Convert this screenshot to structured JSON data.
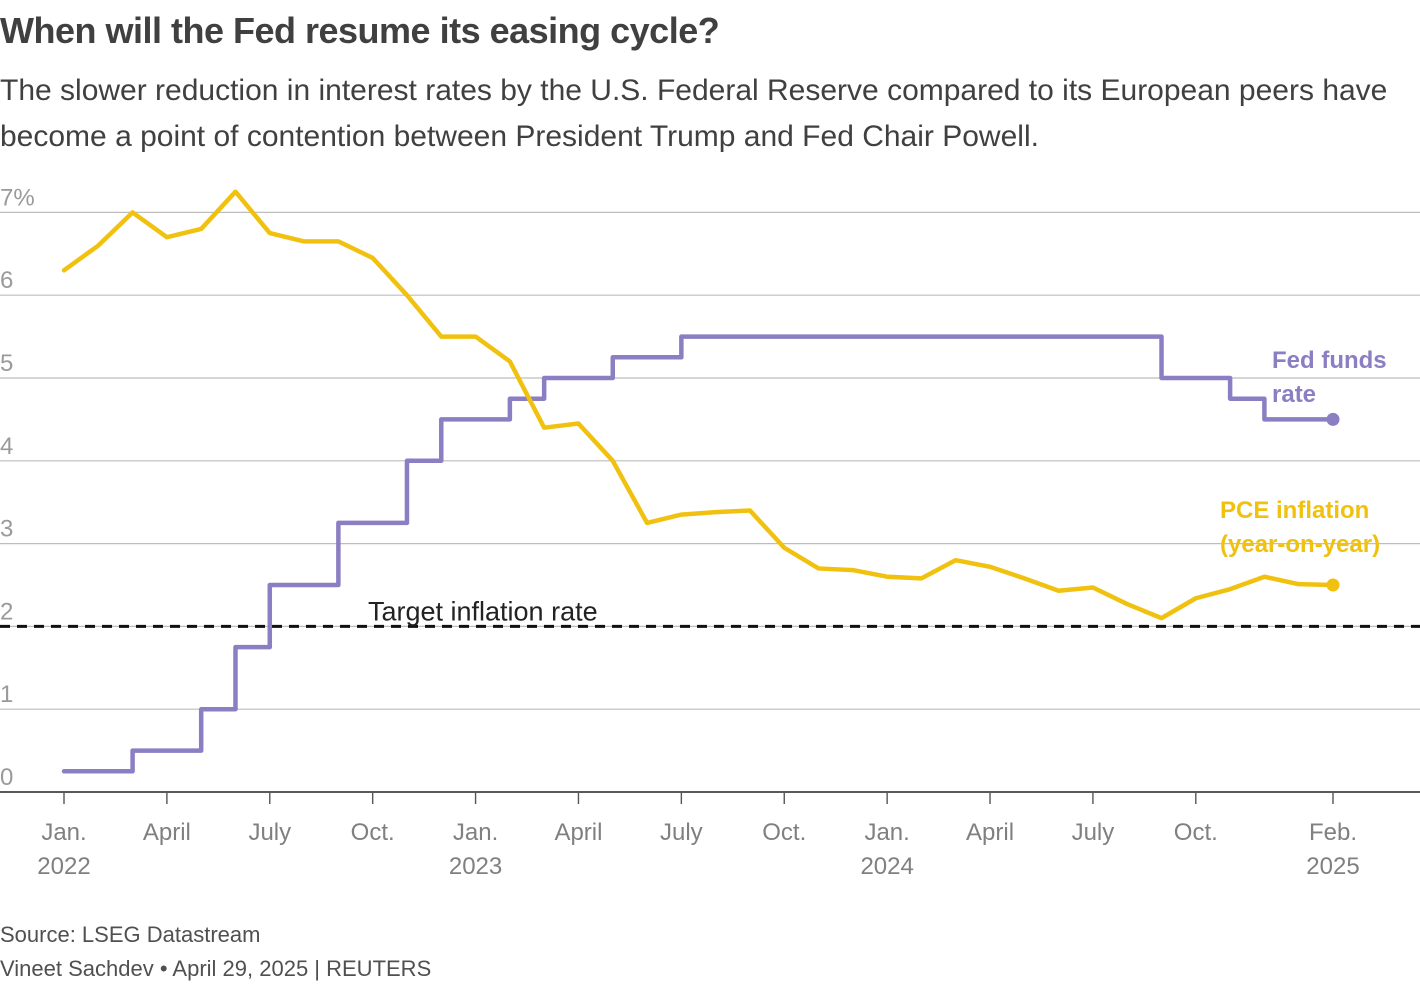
{
  "header": {
    "title": "When will the Fed resume its easing cycle?",
    "subtitle": "The slower reduction in interest rates by the U.S. Federal Reserve compared to its European peers have become a point of contention between President Trump and Fed Chair Powell."
  },
  "footer": {
    "source": "Source: LSEG Datastream",
    "byline": "Vineet Sachdev • April 29, 2025 | REUTERS"
  },
  "chart_data": {
    "type": "line",
    "title": "When will the Fed resume its easing cycle?",
    "ylim": [
      0,
      7
    ],
    "y_ticks": [
      {
        "value": 0,
        "label": "0"
      },
      {
        "value": 1,
        "label": "1"
      },
      {
        "value": 2,
        "label": "2"
      },
      {
        "value": 3,
        "label": "3"
      },
      {
        "value": 4,
        "label": "4"
      },
      {
        "value": 5,
        "label": "5"
      },
      {
        "value": 6,
        "label": "6"
      },
      {
        "value": 7,
        "label": "7%"
      }
    ],
    "x_range": [
      "2022-01",
      "2025-02"
    ],
    "x_ticks": [
      {
        "date": "2022-01",
        "label": "Jan.",
        "year": "2022"
      },
      {
        "date": "2022-04",
        "label": "April",
        "year": ""
      },
      {
        "date": "2022-07",
        "label": "July",
        "year": ""
      },
      {
        "date": "2022-10",
        "label": "Oct.",
        "year": ""
      },
      {
        "date": "2023-01",
        "label": "Jan.",
        "year": "2023"
      },
      {
        "date": "2023-04",
        "label": "April",
        "year": ""
      },
      {
        "date": "2023-07",
        "label": "July",
        "year": ""
      },
      {
        "date": "2023-10",
        "label": "Oct.",
        "year": ""
      },
      {
        "date": "2024-01",
        "label": "Jan.",
        "year": "2024"
      },
      {
        "date": "2024-04",
        "label": "April",
        "year": ""
      },
      {
        "date": "2024-07",
        "label": "July",
        "year": ""
      },
      {
        "date": "2024-10",
        "label": "Oct.",
        "year": ""
      },
      {
        "date": "2025-02",
        "label": "Feb.",
        "year": "2025"
      }
    ],
    "grid": true,
    "reference_line": {
      "value": 2,
      "label": "Target inflation rate",
      "style": "dashed"
    },
    "series": [
      {
        "name": "Fed funds rate",
        "label_lines": [
          "Fed funds",
          "rate"
        ],
        "color": "#8c7ec3",
        "step": true,
        "points": [
          [
            "2022-01",
            0.25
          ],
          [
            "2022-03",
            0.5
          ],
          [
            "2022-05",
            1.0
          ],
          [
            "2022-06",
            1.75
          ],
          [
            "2022-07",
            2.5
          ],
          [
            "2022-09",
            3.25
          ],
          [
            "2022-11",
            4.0
          ],
          [
            "2022-12",
            4.5
          ],
          [
            "2023-02",
            4.75
          ],
          [
            "2023-03",
            5.0
          ],
          [
            "2023-05",
            5.25
          ],
          [
            "2023-07",
            5.5
          ],
          [
            "2024-09",
            5.0
          ],
          [
            "2024-11",
            4.75
          ],
          [
            "2024-12",
            4.5
          ],
          [
            "2025-02",
            4.5
          ]
        ]
      },
      {
        "name": "PCE inflation (year-on-year)",
        "label_lines": [
          "PCE inflation",
          "(year-on-year)"
        ],
        "color": "#f0c20f",
        "step": false,
        "points": [
          [
            "2022-01",
            6.3
          ],
          [
            "2022-02",
            6.6
          ],
          [
            "2022-03",
            7.0
          ],
          [
            "2022-04",
            6.7
          ],
          [
            "2022-05",
            6.8
          ],
          [
            "2022-06",
            7.25
          ],
          [
            "2022-07",
            6.75
          ],
          [
            "2022-08",
            6.65
          ],
          [
            "2022-09",
            6.65
          ],
          [
            "2022-10",
            6.45
          ],
          [
            "2022-11",
            6.0
          ],
          [
            "2022-12",
            5.5
          ],
          [
            "2023-01",
            5.5
          ],
          [
            "2023-02",
            5.2
          ],
          [
            "2023-03",
            4.4
          ],
          [
            "2023-04",
            4.45
          ],
          [
            "2023-05",
            4.0
          ],
          [
            "2023-06",
            3.25
          ],
          [
            "2023-07",
            3.35
          ],
          [
            "2023-08",
            3.38
          ],
          [
            "2023-09",
            3.4
          ],
          [
            "2023-10",
            2.95
          ],
          [
            "2023-11",
            2.7
          ],
          [
            "2023-12",
            2.68
          ],
          [
            "2024-01",
            2.6
          ],
          [
            "2024-02",
            2.58
          ],
          [
            "2024-03",
            2.8
          ],
          [
            "2024-04",
            2.72
          ],
          [
            "2024-05",
            2.58
          ],
          [
            "2024-06",
            2.43
          ],
          [
            "2024-07",
            2.47
          ],
          [
            "2024-08",
            2.27
          ],
          [
            "2024-09",
            2.1
          ],
          [
            "2024-10",
            2.34
          ],
          [
            "2024-11",
            2.45
          ],
          [
            "2024-12",
            2.6
          ],
          [
            "2025-01",
            2.51
          ],
          [
            "2025-02",
            2.5
          ]
        ]
      }
    ],
    "legend": "inline-right"
  }
}
